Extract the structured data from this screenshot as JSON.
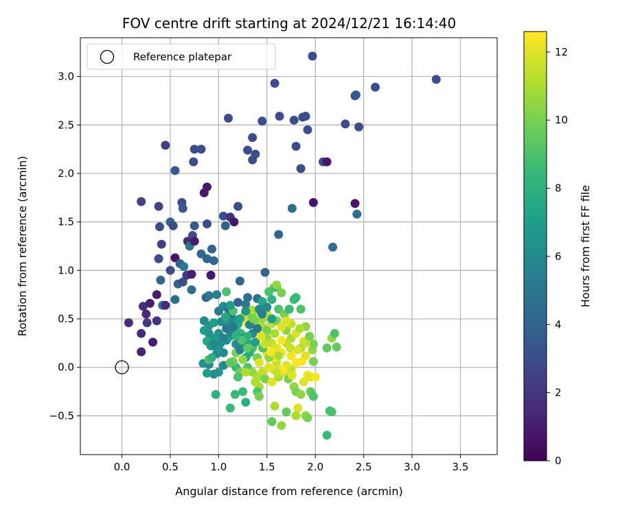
{
  "chart_data": {
    "type": "scatter",
    "title": "FOV centre drift starting at 2024/12/21 16:14:40",
    "xlabel": "Angular distance from reference (arcmin)",
    "ylabel": "Rotation from reference (arcmin)",
    "xlim": [
      -0.43,
      3.88
    ],
    "ylim": [
      -0.9,
      3.4
    ],
    "x_ticks": [
      0.0,
      0.5,
      1.0,
      1.5,
      2.0,
      2.5,
      3.0,
      3.5
    ],
    "x_tick_labels": [
      "0.0",
      "0.5",
      "1.0",
      "1.5",
      "2.0",
      "2.5",
      "3.0",
      "3.5"
    ],
    "y_ticks": [
      -0.5,
      0.0,
      0.5,
      1.0,
      1.5,
      2.0,
      2.5,
      3.0
    ],
    "y_tick_labels": [
      "−0.5",
      "0.0",
      "0.5",
      "1.0",
      "1.5",
      "2.0",
      "2.5",
      "3.0"
    ],
    "grid": true,
    "legend": {
      "placement": "top-left",
      "entries": [
        "Reference platepar"
      ]
    },
    "reference_point": {
      "x": 0.0,
      "y": 0.0
    },
    "colorbar": {
      "label": "Hours from first FF file",
      "min": 0,
      "max": 12.6,
      "ticks": [
        0,
        2,
        4,
        6,
        8,
        10,
        12
      ],
      "tick_labels": [
        "0",
        "2",
        "4",
        "6",
        "8",
        "10",
        "12"
      ],
      "colormap": [
        "#440154",
        "#482878",
        "#3e4989",
        "#31688e",
        "#26828e",
        "#1f9e89",
        "#35b779",
        "#6ece58",
        "#b5de2b",
        "#fde725"
      ]
    },
    "points": [
      [
        0.07,
        0.46,
        1.5
      ],
      [
        0.2,
        0.16,
        1.2
      ],
      [
        0.2,
        0.35,
        1.5
      ],
      [
        0.22,
        0.63,
        1.8
      ],
      [
        0.25,
        0.55,
        1.5
      ],
      [
        0.26,
        0.46,
        2.0
      ],
      [
        0.29,
        0.66,
        1.2
      ],
      [
        0.32,
        0.26,
        1.0
      ],
      [
        0.36,
        0.48,
        1.8
      ],
      [
        0.36,
        0.75,
        1.0
      ],
      [
        0.4,
        0.9,
        4.0
      ],
      [
        0.42,
        0.64,
        5.0
      ],
      [
        0.45,
        0.64,
        1.5
      ],
      [
        0.5,
        1.0,
        3.0
      ],
      [
        0.55,
        0.7,
        4.5
      ],
      [
        0.55,
        1.13,
        0.8
      ],
      [
        0.58,
        0.86,
        4.0
      ],
      [
        0.6,
        1.07,
        4.0
      ],
      [
        0.63,
        0.88,
        3.0
      ],
      [
        0.64,
        1.04,
        5.0
      ],
      [
        0.67,
        0.95,
        2.0
      ],
      [
        0.68,
        1.3,
        1.5
      ],
      [
        0.7,
        1.25,
        5.0
      ],
      [
        0.72,
        0.96,
        1.0
      ],
      [
        0.73,
        1.36,
        3.0
      ],
      [
        0.75,
        1.3,
        1.0
      ],
      [
        0.72,
        0.8,
        4.5
      ],
      [
        0.82,
        1.17,
        4.0
      ],
      [
        0.85,
        1.8,
        0.8
      ],
      [
        0.88,
        1.86,
        0.9
      ],
      [
        0.88,
        1.12,
        4.0
      ],
      [
        0.92,
        0.95,
        0.8
      ],
      [
        0.93,
        1.22,
        4.0
      ],
      [
        0.95,
        1.1,
        4.0
      ],
      [
        0.2,
        1.71,
        2.5
      ],
      [
        0.38,
        1.66,
        2.5
      ],
      [
        0.39,
        1.45,
        3.0
      ],
      [
        0.41,
        1.27,
        2.5
      ],
      [
        0.38,
        1.12,
        3.0
      ],
      [
        0.5,
        1.5,
        4.0
      ],
      [
        0.53,
        1.46,
        3.0
      ],
      [
        0.62,
        1.7,
        3.0
      ],
      [
        0.63,
        1.64,
        3.5
      ],
      [
        0.75,
        1.46,
        3.5
      ],
      [
        0.88,
        1.48,
        3.0
      ],
      [
        0.55,
        2.03,
        3.5
      ],
      [
        0.45,
        2.29,
        2.5
      ],
      [
        0.74,
        2.12,
        3.0
      ],
      [
        0.75,
        2.25,
        3.0
      ],
      [
        0.82,
        2.25,
        3.0
      ],
      [
        1.05,
        1.56,
        3.0
      ],
      [
        1.07,
        1.46,
        4.0
      ],
      [
        1.12,
        1.55,
        1.8
      ],
      [
        1.16,
        1.5,
        0.8
      ],
      [
        1.2,
        1.66,
        3.0
      ],
      [
        1.1,
        2.57,
        3.0
      ],
      [
        1.3,
        2.24,
        3.0
      ],
      [
        1.35,
        2.14,
        3.0
      ],
      [
        1.38,
        2.2,
        3.0
      ],
      [
        1.35,
        2.37,
        3.0
      ],
      [
        1.45,
        2.54,
        3.0
      ],
      [
        1.58,
        2.93,
        3.0
      ],
      [
        1.63,
        2.59,
        3.0
      ],
      [
        1.78,
        2.55,
        3.0
      ],
      [
        1.8,
        2.28,
        3.0
      ],
      [
        1.85,
        2.05,
        3.0
      ],
      [
        1.87,
        2.58,
        3.0
      ],
      [
        1.9,
        2.59,
        3.0
      ],
      [
        1.92,
        2.45,
        3.0
      ],
      [
        1.97,
        3.21,
        3.0
      ],
      [
        1.98,
        1.7,
        0.8
      ],
      [
        2.08,
        2.12,
        3.0
      ],
      [
        2.12,
        2.12,
        0.8
      ],
      [
        2.31,
        2.51,
        3.0
      ],
      [
        2.41,
        2.8,
        3.0
      ],
      [
        2.42,
        2.81,
        3.5
      ],
      [
        2.45,
        2.48,
        3.0
      ],
      [
        2.62,
        2.89,
        3.0
      ],
      [
        3.25,
        2.97,
        3.0
      ],
      [
        2.41,
        1.69,
        0.8
      ],
      [
        2.43,
        1.58,
        4.5
      ],
      [
        1.62,
        1.37,
        4.0
      ],
      [
        1.76,
        1.64,
        4.5
      ],
      [
        2.18,
        1.24,
        4.5
      ],
      [
        1.48,
        0.98,
        4.0
      ],
      [
        1.22,
        0.89,
        4.0
      ],
      [
        1.3,
        0.72,
        4.5
      ],
      [
        1.4,
        0.71,
        4.5
      ],
      [
        1.2,
        0.67,
        4.0
      ],
      [
        1.28,
        0.65,
        5.0
      ],
      [
        0.87,
        0.72,
        4.0
      ],
      [
        0.9,
        0.74,
        5.0
      ],
      [
        0.98,
        0.75,
        5.5
      ],
      [
        1.0,
        0.58,
        5.0
      ],
      [
        1.05,
        0.63,
        6.0
      ],
      [
        0.85,
        0.48,
        6.0
      ],
      [
        0.9,
        0.43,
        6.5
      ],
      [
        0.95,
        0.46,
        7.0
      ],
      [
        1.03,
        0.47,
        6.0
      ],
      [
        1.1,
        0.48,
        6.5
      ],
      [
        1.15,
        0.5,
        6.0
      ],
      [
        0.85,
        0.38,
        7.0
      ],
      [
        0.9,
        0.35,
        6.5
      ],
      [
        0.95,
        0.3,
        5.5
      ],
      [
        0.88,
        0.27,
        7.5
      ],
      [
        0.92,
        0.22,
        7.0
      ],
      [
        0.98,
        0.2,
        6.0
      ],
      [
        1.02,
        0.25,
        6.0
      ],
      [
        1.08,
        0.28,
        6.5
      ],
      [
        1.12,
        0.32,
        7.0
      ],
      [
        0.98,
        0.14,
        6.0
      ],
      [
        1.05,
        0.15,
        6.0
      ],
      [
        0.84,
        0.04,
        6.5
      ],
      [
        0.9,
        0.03,
        6.0
      ],
      [
        0.95,
        -0.07,
        6.0
      ],
      [
        1.0,
        -0.05,
        6.5
      ],
      [
        0.88,
        -0.06,
        7.0
      ],
      [
        1.05,
        0.02,
        6.0
      ],
      [
        0.9,
        0.08,
        9.0
      ],
      [
        0.93,
        0.1,
        8.0
      ],
      [
        0.97,
        -0.28,
        8.0
      ],
      [
        1.12,
        -0.42,
        8.5
      ],
      [
        1.17,
        -0.28,
        8.5
      ],
      [
        1.25,
        -0.25,
        8.5
      ],
      [
        1.28,
        -0.36,
        8.0
      ],
      [
        1.18,
        0.0,
        8.5
      ],
      [
        1.15,
        0.06,
        10.0
      ],
      [
        1.22,
        -0.05,
        10.0
      ],
      [
        1.1,
        0.6,
        5.0
      ],
      [
        1.12,
        0.55,
        4.5
      ],
      [
        1.15,
        0.58,
        9.0
      ],
      [
        1.08,
        0.78,
        9.0
      ],
      [
        1.18,
        0.4,
        8.0
      ],
      [
        1.23,
        0.35,
        8.5
      ],
      [
        1.2,
        0.45,
        7.5
      ],
      [
        1.25,
        0.3,
        6.5
      ],
      [
        1.3,
        0.25,
        7.5
      ],
      [
        1.35,
        0.2,
        9.0
      ],
      [
        1.32,
        0.15,
        8.0
      ],
      [
        1.28,
        0.1,
        7.5
      ],
      [
        1.3,
        0.0,
        9.0
      ],
      [
        1.35,
        -0.05,
        10.5
      ],
      [
        1.4,
        0.1,
        10.0
      ],
      [
        1.38,
        0.45,
        10.5
      ],
      [
        1.35,
        0.52,
        9.5
      ],
      [
        1.4,
        0.58,
        11.0
      ],
      [
        1.45,
        0.5,
        10.5
      ],
      [
        1.5,
        0.55,
        11.5
      ],
      [
        1.45,
        0.42,
        11.0
      ],
      [
        1.5,
        0.38,
        10.0
      ],
      [
        1.55,
        0.45,
        11.5
      ],
      [
        1.6,
        0.48,
        10.0
      ],
      [
        1.62,
        0.6,
        9.0
      ],
      [
        1.55,
        0.7,
        8.0
      ],
      [
        1.57,
        0.82,
        9.5
      ],
      [
        1.6,
        0.83,
        8.0
      ],
      [
        1.65,
        0.77,
        10.0
      ],
      [
        1.48,
        0.62,
        8.0
      ],
      [
        1.45,
        0.68,
        7.5
      ],
      [
        1.5,
        0.3,
        10.5
      ],
      [
        1.45,
        0.2,
        11.0
      ],
      [
        1.5,
        0.15,
        12.0
      ],
      [
        1.55,
        0.25,
        11.5
      ],
      [
        1.6,
        0.2,
        12.0
      ],
      [
        1.65,
        0.15,
        12.5
      ],
      [
        1.7,
        0.25,
        11.5
      ],
      [
        1.75,
        0.3,
        11.0
      ],
      [
        1.8,
        0.35,
        12.0
      ],
      [
        1.7,
        0.38,
        10.5
      ],
      [
        1.75,
        0.45,
        11.5
      ],
      [
        1.65,
        0.42,
        12.0
      ],
      [
        1.68,
        0.55,
        10.0
      ],
      [
        1.73,
        0.6,
        8.5
      ],
      [
        1.78,
        0.7,
        8.5
      ],
      [
        1.8,
        0.72,
        8.5
      ],
      [
        1.85,
        0.6,
        9.0
      ],
      [
        1.9,
        0.42,
        10.5
      ],
      [
        1.88,
        0.27,
        12.0
      ],
      [
        1.85,
        0.2,
        11.0
      ],
      [
        1.9,
        0.12,
        12.0
      ],
      [
        1.8,
        0.05,
        12.5
      ],
      [
        1.75,
        -0.02,
        11.5
      ],
      [
        1.7,
        0.02,
        12.0
      ],
      [
        1.6,
        0.05,
        11.5
      ],
      [
        1.58,
        0.1,
        12.5
      ],
      [
        1.52,
        0.0,
        12.0
      ],
      [
        1.45,
        -0.05,
        11.5
      ],
      [
        1.4,
        -0.1,
        11.0
      ],
      [
        1.48,
        -0.12,
        10.0
      ],
      [
        1.42,
        -0.2,
        11.0
      ],
      [
        1.55,
        -0.15,
        12.0
      ],
      [
        1.62,
        -0.1,
        11.0
      ],
      [
        1.68,
        -0.05,
        12.0
      ],
      [
        1.72,
        -0.12,
        10.0
      ],
      [
        1.78,
        -0.2,
        10.5
      ],
      [
        1.8,
        -0.25,
        10.0
      ],
      [
        1.85,
        -0.28,
        10.5
      ],
      [
        1.88,
        -0.15,
        12.0
      ],
      [
        1.92,
        -0.08,
        12.5
      ],
      [
        1.95,
        -0.1,
        12.0
      ],
      [
        1.98,
        0.06,
        10.0
      ],
      [
        1.97,
        0.18,
        10.5
      ],
      [
        1.98,
        0.24,
        10.0
      ],
      [
        2.0,
        -0.1,
        12.5
      ],
      [
        1.95,
        -0.25,
        9.5
      ],
      [
        1.98,
        -0.3,
        9.0
      ],
      [
        1.9,
        -0.5,
        10.5
      ],
      [
        1.92,
        -0.52,
        10.0
      ],
      [
        1.82,
        -0.42,
        12.0
      ],
      [
        1.8,
        -0.5,
        11.0
      ],
      [
        1.65,
        -0.6,
        10.5
      ],
      [
        1.58,
        -0.4,
        11.0
      ],
      [
        1.55,
        -0.56,
        9.5
      ],
      [
        1.4,
        -0.25,
        9.0
      ],
      [
        1.42,
        -0.3,
        10.0
      ],
      [
        1.7,
        -0.46,
        9.5
      ],
      [
        2.12,
        0.2,
        9.5
      ],
      [
        2.17,
        0.3,
        10.5
      ],
      [
        2.2,
        0.35,
        9.0
      ],
      [
        2.22,
        0.21,
        9.5
      ],
      [
        2.15,
        -0.45,
        8.5
      ],
      [
        2.17,
        -0.46,
        9.0
      ],
      [
        2.12,
        -0.7,
        8.5
      ],
      [
        1.6,
        0.85,
        10.5
      ],
      [
        1.52,
        0.78,
        9.0
      ],
      [
        1.35,
        0.59,
        11.0
      ],
      [
        1.26,
        0.53,
        11.5
      ],
      [
        1.3,
        0.45,
        12.0
      ],
      [
        1.4,
        0.3,
        12.5
      ],
      [
        1.42,
        0.05,
        12.0
      ],
      [
        1.38,
        -0.15,
        11.0
      ],
      [
        1.18,
        0.15,
        10.0
      ],
      [
        1.12,
        0.05,
        9.5
      ],
      [
        1.2,
        -0.1,
        9.0
      ],
      [
        1.25,
        0.08,
        10.5
      ],
      [
        1.28,
        -0.05,
        11.0
      ],
      [
        0.96,
        0.3,
        7.0
      ],
      [
        1.0,
        0.35,
        6.5
      ],
      [
        1.08,
        0.4,
        5.0
      ],
      [
        1.12,
        0.36,
        5.5
      ],
      [
        1.18,
        0.24,
        6.0
      ],
      [
        1.22,
        0.18,
        5.5
      ],
      [
        1.26,
        0.22,
        6.0
      ],
      [
        1.28,
        0.58,
        6.5
      ],
      [
        1.32,
        0.44,
        5.5
      ],
      [
        1.35,
        0.35,
        6.0
      ],
      [
        1.4,
        0.4,
        5.0
      ],
      [
        1.42,
        0.6,
        6.0
      ],
      [
        1.45,
        0.55,
        5.5
      ],
      [
        1.5,
        0.62,
        6.0
      ],
      [
        1.55,
        0.5,
        7.0
      ],
      [
        1.38,
        0.26,
        7.0
      ],
      [
        1.3,
        0.32,
        8.0
      ],
      [
        1.22,
        0.5,
        7.0
      ],
      [
        1.15,
        0.42,
        5.0
      ],
      [
        1.05,
        0.3,
        5.5
      ],
      [
        1.0,
        0.2,
        6.5
      ],
      [
        0.95,
        0.24,
        6.0
      ],
      [
        1.07,
        0.52,
        7.5
      ],
      [
        1.12,
        0.64,
        7.0
      ],
      [
        1.46,
        0.2,
        9.0
      ],
      [
        1.52,
        0.1,
        10.5
      ],
      [
        1.56,
        -0.02,
        12.0
      ],
      [
        1.62,
        0.12,
        11.0
      ],
      [
        1.65,
        0.28,
        12.5
      ],
      [
        1.58,
        0.35,
        11.0
      ],
      [
        1.7,
        0.48,
        12.0
      ],
      [
        1.75,
        0.12,
        12.5
      ],
      [
        1.82,
        0.18,
        12.0
      ],
      [
        1.74,
        0.2,
        11.5
      ],
      [
        1.66,
        -0.02,
        12.5
      ],
      [
        1.6,
        -0.05,
        11.5
      ],
      [
        1.54,
        0.16,
        12.5
      ],
      [
        1.48,
        0.24,
        11.5
      ],
      [
        1.44,
        0.32,
        12.0
      ],
      [
        1.36,
        0.5,
        10.0
      ],
      [
        1.3,
        0.2,
        9.5
      ],
      [
        1.24,
        0.28,
        9.0
      ],
      [
        1.18,
        0.33,
        8.0
      ],
      [
        1.84,
        0.4,
        11.0
      ],
      [
        1.9,
        0.25,
        11.5
      ],
      [
        1.94,
        0.32,
        10.0
      ],
      [
        1.86,
        0.06,
        12.5
      ],
      [
        1.76,
        -0.08,
        12.0
      ]
    ]
  }
}
